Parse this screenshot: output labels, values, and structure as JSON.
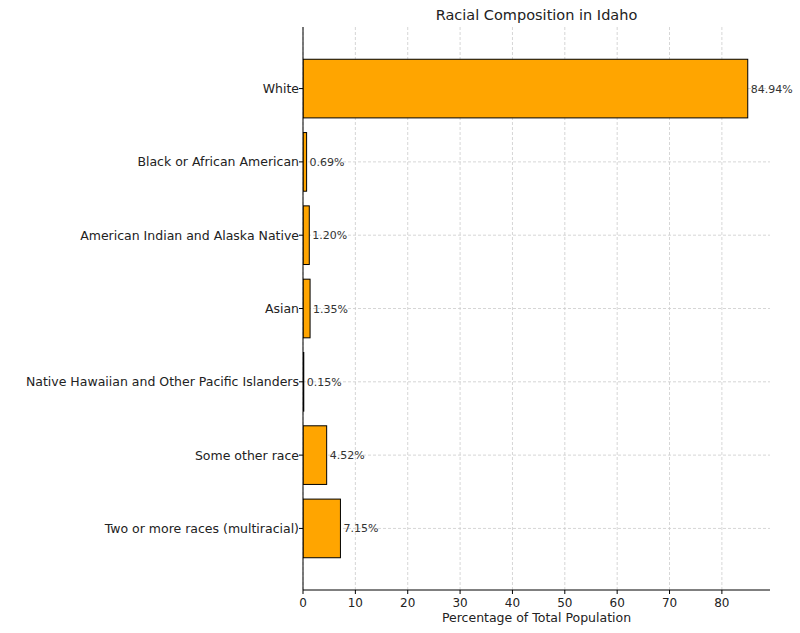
{
  "chart_data": {
    "type": "bar",
    "orientation": "horizontal",
    "title": "Racial Composition in Idaho",
    "x_label": "Percentage of Total Population",
    "categories": [
      "White",
      "Black or African American",
      "American Indian and Alaska Native",
      "Asian",
      "Native Hawaiian and Other Pacific Islanders",
      "Some other race",
      "Two or more races (multiracial)"
    ],
    "values": [
      84.94,
      0.69,
      1.2,
      1.35,
      0.15,
      4.52,
      7.15
    ],
    "value_labels": [
      "84.94%",
      "0.69%",
      "1.20%",
      "1.35%",
      "0.15%",
      "4.52%",
      "7.15%"
    ],
    "data_labels": true,
    "color": "#ffa500",
    "xlim": [
      0,
      89.19
    ],
    "xticks": [
      0,
      10,
      20,
      30,
      40,
      50,
      60,
      70,
      80
    ],
    "grid": true
  }
}
